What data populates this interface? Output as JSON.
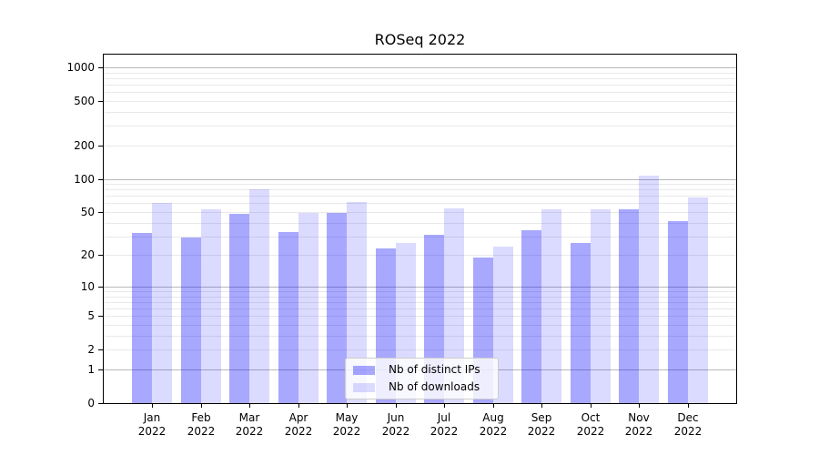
{
  "chart_data": {
    "type": "bar",
    "title": "ROSeq 2022",
    "categories": [
      "Jan",
      "Feb",
      "Mar",
      "Apr",
      "May",
      "Jun",
      "Jul",
      "Aug",
      "Sep",
      "Oct",
      "Nov",
      "Dec"
    ],
    "x_tick_year": "2022",
    "series": [
      {
        "name": "Nb of distinct IPs",
        "color": "rgba(0,0,255,0.34)",
        "values": [
          32,
          29,
          48,
          33,
          49,
          23,
          31,
          19,
          34,
          26,
          53,
          41
        ]
      },
      {
        "name": "Nb of downloads",
        "color": "rgba(0,0,255,0.14)",
        "values": [
          61,
          53,
          80,
          49,
          62,
          26,
          54,
          24,
          53,
          53,
          106,
          68
        ]
      }
    ],
    "yscale": "log1p",
    "ylim": [
      0,
      1300
    ],
    "yticks": [
      0,
      1,
      2,
      5,
      10,
      20,
      50,
      100,
      200,
      500,
      1000
    ],
    "major_grid_values": [
      1,
      10,
      100,
      1000
    ],
    "minor_grid_decades": [
      1,
      10,
      100
    ],
    "grid": true,
    "legend_position": "lower center",
    "colors": {
      "major_grid": "#b8b8b8",
      "minor_grid": "#e9e9e9",
      "spine": "#000000",
      "text": "#000000"
    }
  }
}
